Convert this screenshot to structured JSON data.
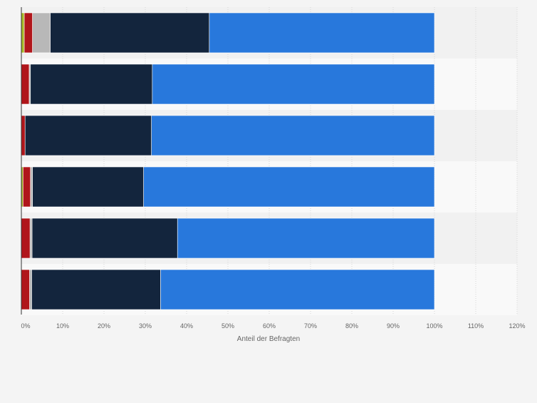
{
  "chart_data": {
    "type": "bar",
    "orientation": "horizontal",
    "stacked": true,
    "xlabel": "Anteil der Befragten",
    "ylabel": "",
    "xlim": [
      0,
      120
    ],
    "x_ticks": [
      "0%",
      "10%",
      "20%",
      "30%",
      "40%",
      "50%",
      "60%",
      "70%",
      "80%",
      "90%",
      "100%",
      "110%",
      "120%"
    ],
    "categories": [
      "",
      "",
      "",
      "",
      "",
      ""
    ],
    "series": [
      {
        "color": "#a6b824",
        "values": [
          0.7,
          0.0,
          0.0,
          0.4,
          0.0,
          0.0
        ]
      },
      {
        "color": "#b0161b",
        "values": [
          2.0,
          1.9,
          0.9,
          1.8,
          2.1,
          2.0
        ]
      },
      {
        "color": "#b8b8b8",
        "values": [
          4.3,
          0.3,
          0.0,
          0.5,
          0.5,
          0.5
        ]
      },
      {
        "color": "#13253d",
        "values": [
          38.5,
          29.5,
          30.6,
          26.9,
          35.2,
          31.2
        ]
      },
      {
        "color": "#2878dc",
        "values": [
          54.5,
          68.3,
          68.5,
          70.4,
          62.2,
          66.3
        ]
      }
    ],
    "grid": true,
    "legend": "none"
  }
}
